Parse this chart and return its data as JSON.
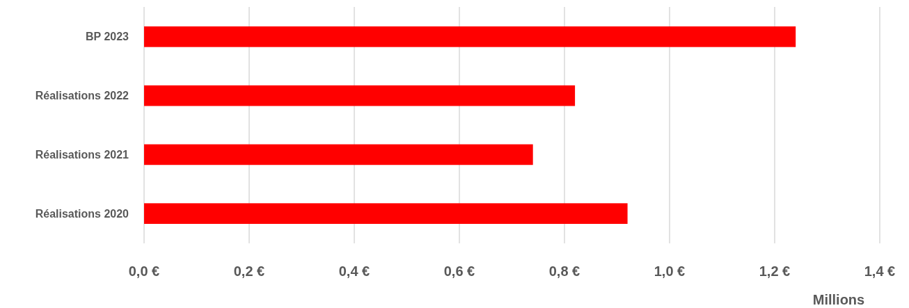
{
  "chart_data": {
    "type": "bar",
    "orientation": "horizontal",
    "categories": [
      "BP 2023",
      "Réalisations 2022",
      "Réalisations 2021",
      "Réalisations 2020"
    ],
    "values": [
      1.24,
      0.82,
      0.74,
      0.92
    ],
    "color": "#ff0000",
    "xlim": [
      0,
      1.4
    ],
    "xticks": [
      {
        "value": 0,
        "label": "0,0 €"
      },
      {
        "value": 0.2,
        "label": "0,2 €"
      },
      {
        "value": 0.4,
        "label": "0,4 €"
      },
      {
        "value": 0.6,
        "label": "0,6 €"
      },
      {
        "value": 0.8,
        "label": "0,8 €"
      },
      {
        "value": 1.0,
        "label": "1,0 €"
      },
      {
        "value": 1.2,
        "label": "1,2 €"
      },
      {
        "value": 1.4,
        "label": "1,4 €"
      }
    ],
    "xlabel": "Millions",
    "grid": "x"
  }
}
